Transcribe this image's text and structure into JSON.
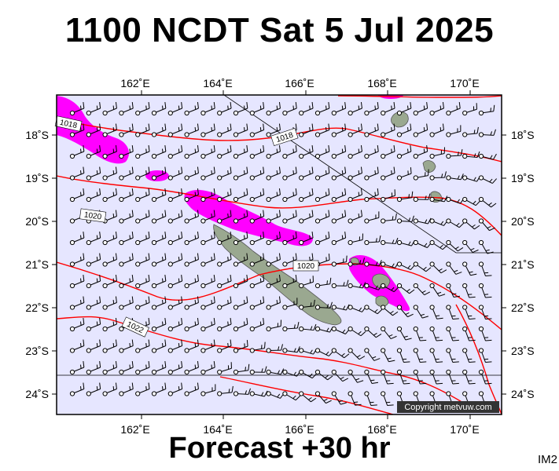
{
  "header": {
    "title": "1100 NCDT Sat 5 Jul 2025"
  },
  "footer": {
    "forecast": "Forecast +30 hr",
    "product_code": "IM2"
  },
  "map": {
    "lon_range": [
      160.0,
      171.0
    ],
    "lat_range": [
      -17.0,
      -24.4
    ],
    "lon_ticks": [
      "162˚E",
      "164˚E",
      "166˚E",
      "168˚E",
      "170˚E"
    ],
    "lat_ticks": [
      "18˚S",
      "19˚S",
      "20˚S",
      "21˚S",
      "22˚S",
      "23˚S",
      "24˚S"
    ],
    "isobar_labels": [
      "1018",
      "1018",
      "1020",
      "1020",
      "1022"
    ],
    "copyright": "Copyright metvuw.com",
    "colors": {
      "ocean": "#e6e6ff",
      "land": "#9aa890",
      "rain": "#ff00ff",
      "isobar": "#ff0000",
      "frame": "#000000"
    }
  }
}
